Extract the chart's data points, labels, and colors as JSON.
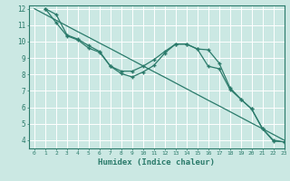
{
  "xlabel": "Humidex (Indice chaleur)",
  "bg_color": "#cbe8e3",
  "grid_color": "#ffffff",
  "line_color": "#2a7a6a",
  "xlim": [
    -0.5,
    23
  ],
  "ylim": [
    3.5,
    12.2
  ],
  "xticks": [
    0,
    1,
    2,
    3,
    4,
    5,
    6,
    7,
    8,
    9,
    10,
    11,
    12,
    13,
    14,
    15,
    16,
    17,
    18,
    19,
    20,
    21,
    22,
    23
  ],
  "yticks": [
    4,
    5,
    6,
    7,
    8,
    9,
    10,
    11,
    12
  ],
  "line_straight_x": [
    0,
    1,
    2,
    3,
    4,
    5,
    6,
    7,
    8,
    9,
    10,
    11,
    12,
    13,
    14,
    15,
    16,
    17,
    18,
    19,
    20,
    21,
    22,
    23
  ],
  "line_straight_y": [
    12.0,
    11.65,
    11.3,
    10.95,
    10.6,
    10.26,
    9.91,
    9.57,
    9.22,
    8.87,
    8.52,
    8.17,
    7.83,
    7.48,
    7.13,
    6.78,
    6.43,
    6.09,
    5.74,
    5.39,
    5.04,
    4.7,
    4.35,
    4.0
  ],
  "line_curve1_x": [
    1,
    2,
    3,
    4,
    5,
    6,
    7,
    8,
    9,
    10,
    11,
    12,
    13,
    14,
    15,
    16,
    17,
    18,
    19,
    20,
    21,
    22,
    23
  ],
  "line_curve1_y": [
    12.0,
    11.65,
    10.4,
    10.15,
    9.75,
    9.4,
    8.5,
    8.2,
    8.2,
    8.5,
    8.9,
    9.4,
    9.85,
    9.85,
    9.55,
    9.5,
    8.7,
    7.2,
    6.5,
    5.9,
    4.7,
    4.0,
    3.9
  ],
  "line_curve2_x": [
    1,
    2,
    3,
    4,
    5,
    6,
    7,
    8,
    9,
    10,
    11,
    12,
    13,
    14,
    15,
    16,
    17,
    18,
    19,
    20,
    21,
    22,
    23
  ],
  "line_curve2_y": [
    12.0,
    11.15,
    10.35,
    10.1,
    9.6,
    9.35,
    8.5,
    8.05,
    7.85,
    8.15,
    8.55,
    9.3,
    9.85,
    9.85,
    9.55,
    8.5,
    8.35,
    7.1,
    6.5,
    5.9,
    4.7,
    3.95,
    3.9
  ]
}
